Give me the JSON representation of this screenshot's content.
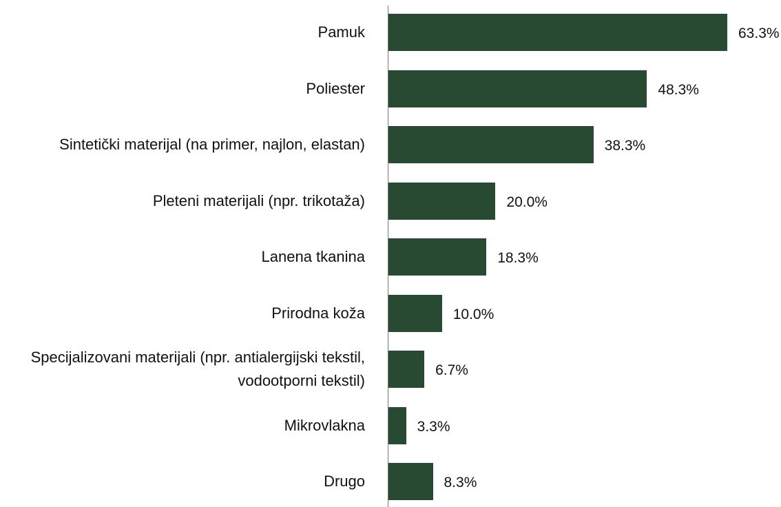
{
  "chart_data": {
    "type": "bar",
    "orientation": "horizontal",
    "color": "#284a33",
    "categories": [
      "Pamuk",
      "Poliester",
      "Sintetički materijal (na primer, najlon, elastan)",
      "Pleteni materijali (npr. trikotaža)",
      "Lanena tkanina",
      "Prirodna koža",
      "Specijalizovani materijali (npr. antialergijski tekstil, vodootporni tekstil)",
      "Mikrovlakna ",
      "Drugo"
    ],
    "values": [
      63.3,
      48.3,
      38.3,
      20.0,
      18.3,
      10.0,
      6.7,
      3.3,
      8.3
    ],
    "value_labels": [
      "63.3%",
      "48.3%",
      "38.3%",
      "20.0%",
      "18.3%",
      "10.0%",
      "6.7%",
      "3.3%",
      "8.3%"
    ]
  }
}
